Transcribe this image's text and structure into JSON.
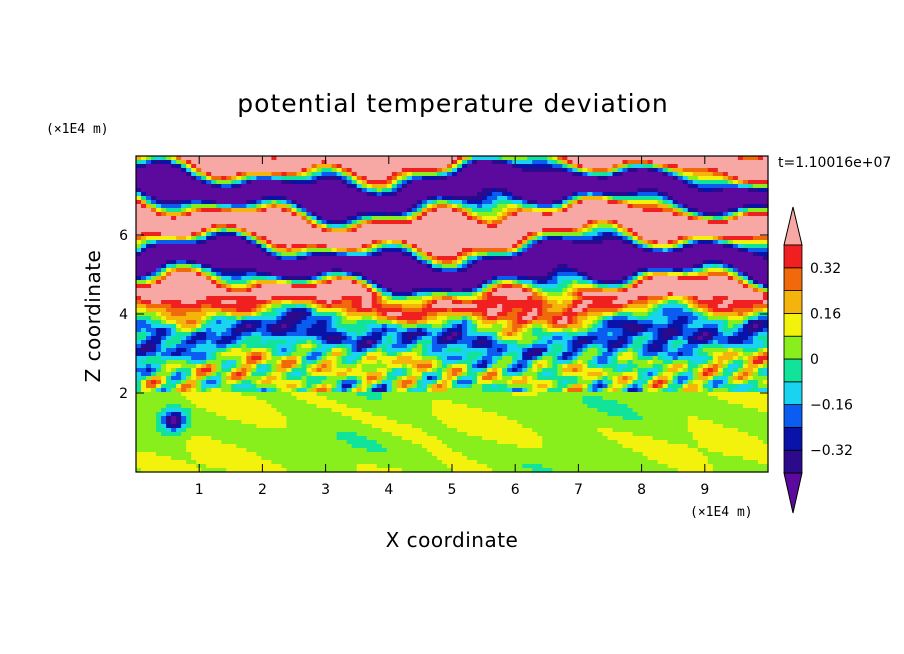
{
  "chart_data": {
    "type": "heatmap",
    "title": "potential temperature deviation",
    "xlabel": "X coordinate",
    "ylabel": "Z coordinate",
    "x_unit": "(×1E4 m)",
    "y_unit": "(×1E4 m)",
    "time_label": "t=1.10016e+07",
    "xlim": [
      0,
      10
    ],
    "ylim": [
      0,
      8
    ],
    "x_ticks": [
      1,
      2,
      3,
      4,
      5,
      6,
      7,
      8,
      9
    ],
    "y_ticks": [
      2,
      4,
      6
    ],
    "colorbar": {
      "levels": [
        -0.4,
        -0.32,
        -0.24,
        -0.16,
        -0.08,
        0,
        0.08,
        0.16,
        0.24,
        0.32,
        0.4
      ],
      "tick_labels": [
        "0.32",
        "0.16",
        "0",
        "−0.16",
        "−0.32"
      ],
      "tick_values": [
        0.32,
        0.16,
        0,
        -0.16,
        -0.32
      ],
      "colors": [
        "#5c0a9e",
        "#2b0b8c",
        "#0a13a8",
        "#0b5cf0",
        "#19d4f0",
        "#12e39a",
        "#88ee1c",
        "#f2f20c",
        "#f5b40b",
        "#f06a0c",
        "#f02020",
        "#f7a8a4"
      ],
      "extend": "both"
    },
    "field_regions": [
      {
        "z_range": [
          0,
          2
        ],
        "pattern": "smooth, values near 0 to +0.08 with deep blue eddy near x=0.6, z=1.3"
      },
      {
        "z_range": [
          2,
          4.5
        ],
        "pattern": "turbulent mixed layer, full range of values"
      },
      {
        "z_range": [
          4.5,
          8
        ],
        "pattern": "alternating horizontal bands of +0.4 and -0.4"
      }
    ]
  }
}
